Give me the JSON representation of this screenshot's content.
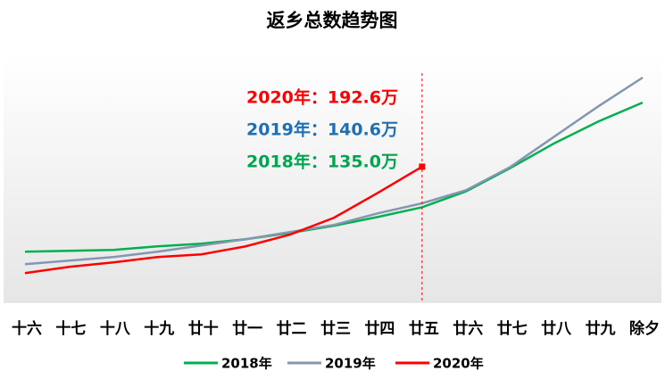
{
  "chart_data": {
    "type": "line",
    "title": "返乡总数趋势图",
    "categories": [
      "十六",
      "十七",
      "十八",
      "十九",
      "廿十",
      "廿一",
      "廿二",
      "廿三",
      "廿四",
      "廿五",
      "廿六",
      "廿七",
      "廿八",
      "廿九",
      "除夕"
    ],
    "series": [
      {
        "name": "2018年",
        "color": "#00b050",
        "values": [
          71.9,
          73.2,
          74.4,
          79.5,
          83.3,
          89.6,
          98.5,
          108.7,
          121.3,
          135.0,
          157.8,
          190.7,
          226.0,
          257.0,
          283.7
        ]
      },
      {
        "name": "2019年",
        "color": "#8496b0",
        "values": [
          54.1,
          59.2,
          64.3,
          71.9,
          80.8,
          89.6,
          99.8,
          109.9,
          126.4,
          140.6,
          159.3,
          192.3,
          235.5,
          278.6,
          319.2
        ]
      },
      {
        "name": "2020年",
        "color": "#ff0000",
        "values": [
          41.5,
          50.3,
          56.7,
          64.3,
          68.1,
          79.5,
          96.0,
          120.0,
          155.6,
          192.6,
          null,
          null,
          null,
          null,
          null
        ]
      }
    ],
    "annotations": [
      {
        "text": "2020年：192.6万",
        "color": "#ff0000"
      },
      {
        "text": "2019年：140.6万",
        "color": "#1f6fb5"
      },
      {
        "text": "2018年：135.0万",
        "color": "#00a550"
      }
    ],
    "legend": "bottom"
  }
}
